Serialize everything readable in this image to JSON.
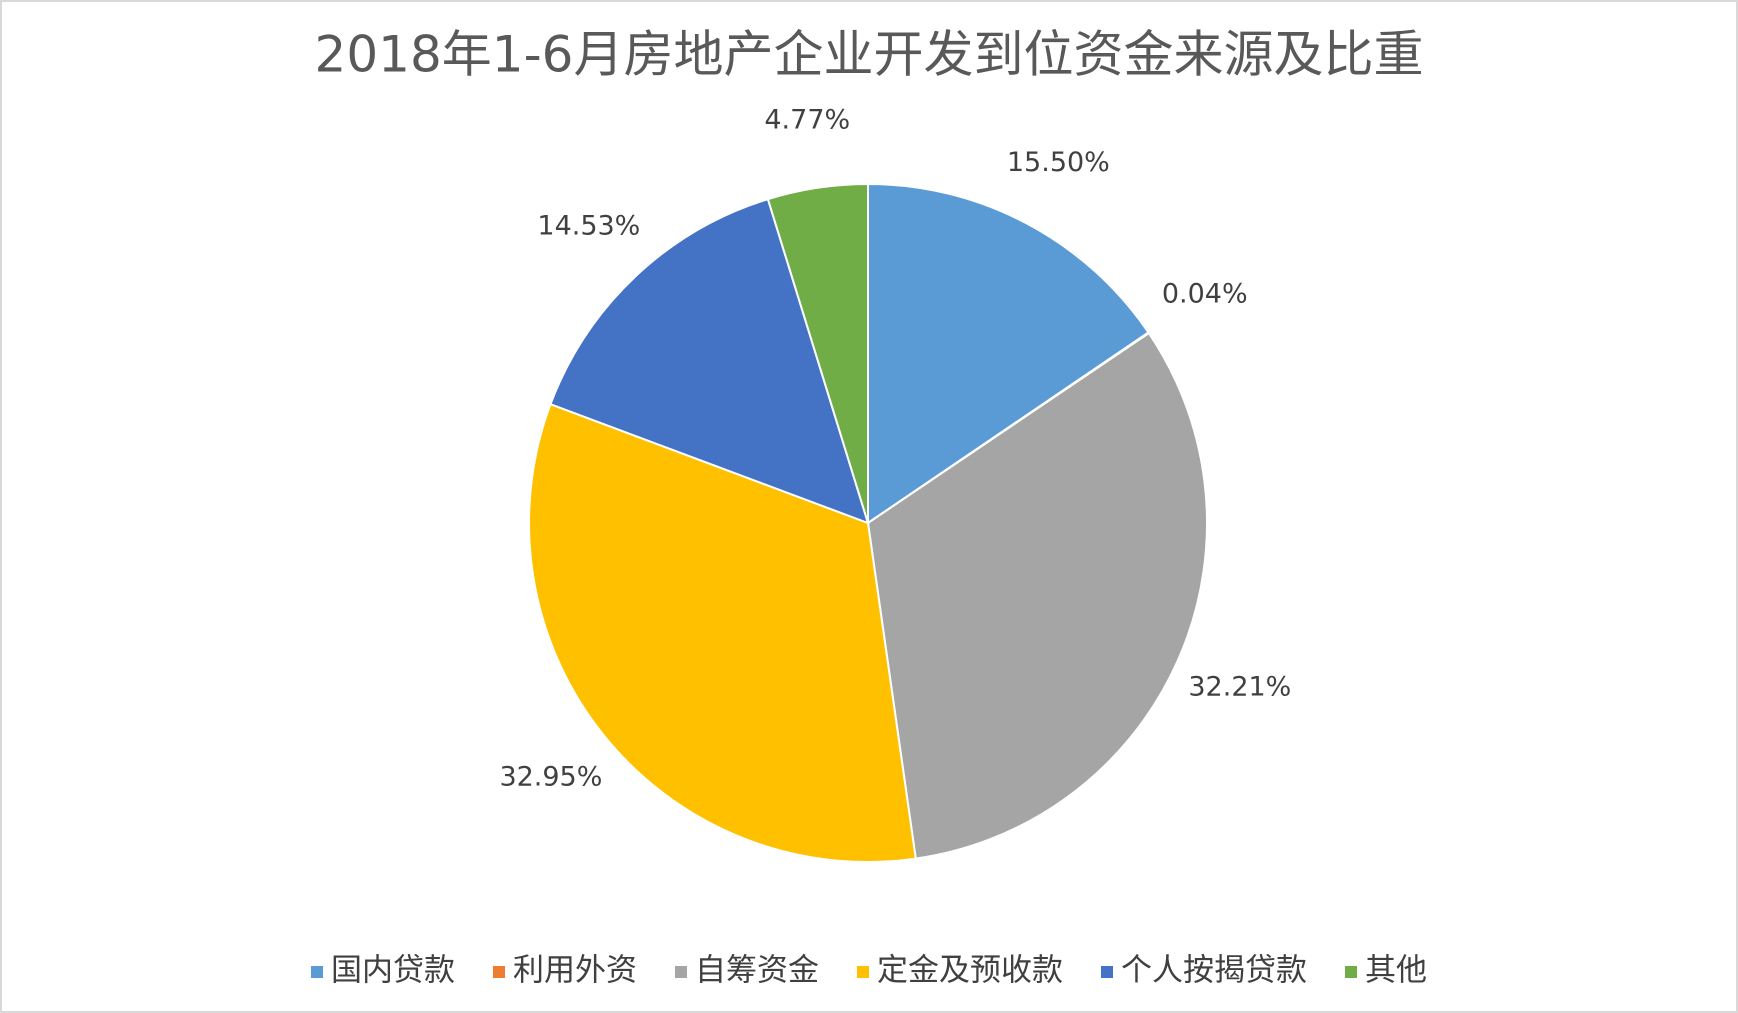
{
  "chart_data": {
    "type": "pie",
    "title": "2018年1-6月房地产企业开发到位资金来源及比重",
    "categories": [
      "国内贷款",
      "利用外资",
      "自筹资金",
      "定金及预收款",
      "个人按揭贷款",
      "其他"
    ],
    "values": [
      15.5,
      0.04,
      32.21,
      32.95,
      14.53,
      4.77
    ],
    "value_labels": [
      "15.50%",
      "0.04%",
      "32.21%",
      "32.95%",
      "14.53%",
      "4.77%"
    ],
    "colors": [
      "#5b9bd5",
      "#ed7d31",
      "#a5a5a5",
      "#ffc000",
      "#4472c4",
      "#70ad47"
    ],
    "legend": "bottom"
  }
}
